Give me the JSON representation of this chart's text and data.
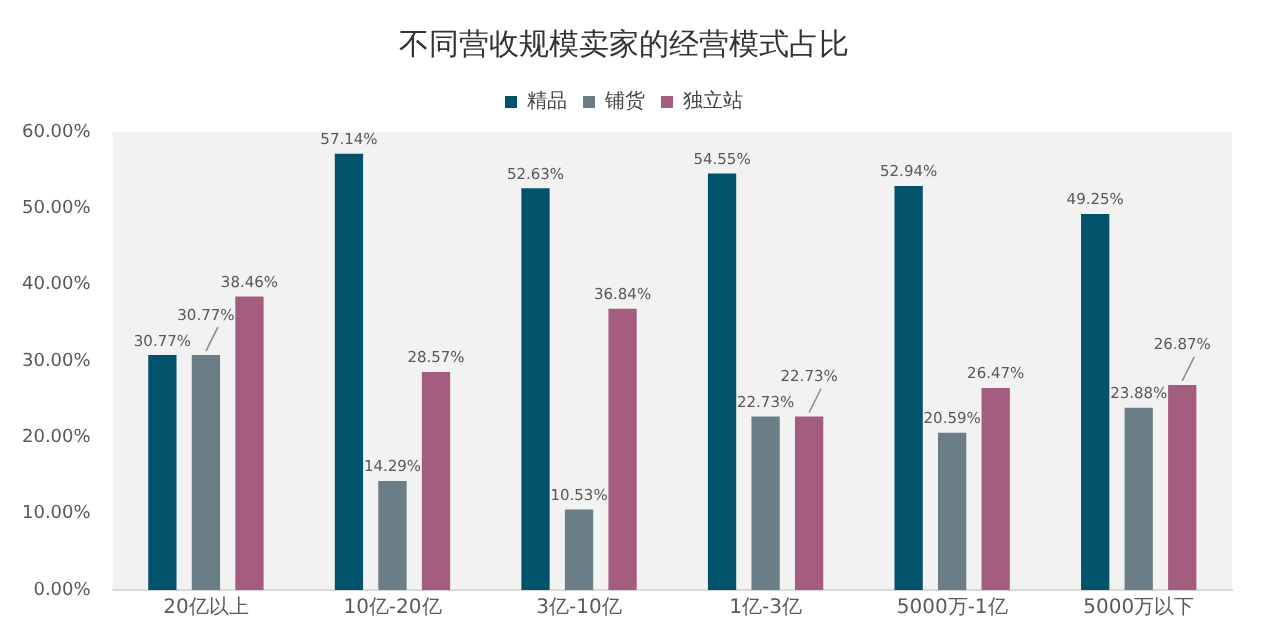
{
  "chart_data": {
    "type": "bar",
    "title": "不同营收规模卖家的经营模式占比",
    "categories": [
      "20亿以上",
      "10亿-20亿",
      "3亿-10亿",
      "1亿-3亿",
      "5000万-1亿",
      "5000万以下"
    ],
    "series": [
      {
        "name": "精品",
        "color": "#00536b",
        "values": [
          30.77,
          57.14,
          52.63,
          54.55,
          52.94,
          49.25
        ],
        "value_labels": [
          "30.77%",
          "57.14%",
          "52.63%",
          "54.55%",
          "52.94%",
          "49.25%"
        ]
      },
      {
        "name": "铺货",
        "color": "#6b7d87",
        "values": [
          30.77,
          14.29,
          10.53,
          22.73,
          20.59,
          23.88
        ],
        "value_labels": [
          "30.77%",
          "14.29%",
          "10.53%",
          "22.73%",
          "20.59%",
          "23.88%"
        ]
      },
      {
        "name": "独立站",
        "color": "#a45d7e",
        "values": [
          38.46,
          28.57,
          36.84,
          22.73,
          26.47,
          26.87
        ],
        "value_labels": [
          "38.46%",
          "28.57%",
          "36.84%",
          "22.73%",
          "26.47%",
          "26.87%"
        ]
      }
    ],
    "ylim": [
      0,
      60
    ],
    "yticks": [
      {
        "value": 0,
        "label": "0.00%"
      },
      {
        "value": 10,
        "label": "10.00%"
      },
      {
        "value": 20,
        "label": "20.00%"
      },
      {
        "value": 30,
        "label": "30.00%"
      },
      {
        "value": 40,
        "label": "40.00%"
      },
      {
        "value": 50,
        "label": "50.00%"
      },
      {
        "value": 60,
        "label": "60.00%"
      }
    ],
    "grid": false,
    "legend": "top"
  }
}
